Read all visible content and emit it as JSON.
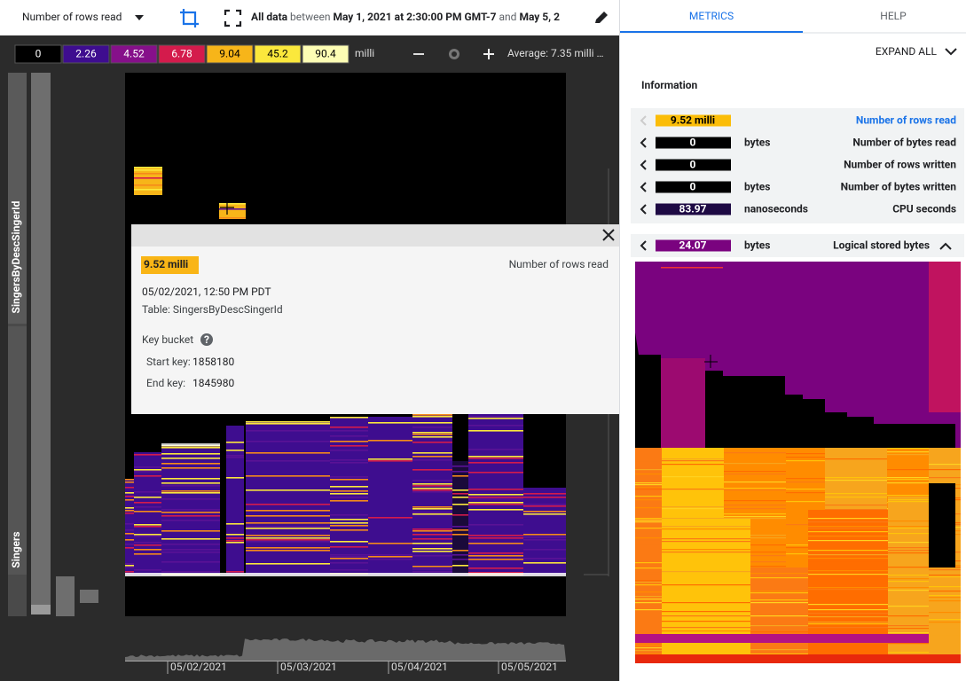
{
  "toolbar": {
    "metric": "Number of rows read",
    "scope": "All data",
    "between": "between",
    "start": "May 1, 2021 at 2:30:00 PM GMT-7",
    "and": "and",
    "end": "May 5, 2"
  },
  "legend": {
    "stops": [
      0,
      2.26,
      4.52,
      6.78,
      9.04,
      45.2,
      90.4
    ],
    "unit": "milli",
    "average": "Average: 7.35 milli …"
  },
  "heatmap": {
    "tables": [
      "SingersByDescSingerId",
      "Singers"
    ],
    "dates": [
      "05/02/2021",
      "05/03/2021",
      "05/04/2021",
      "05/05/2021"
    ]
  },
  "tooltip": {
    "value": "9.52 milli",
    "metric": "Number of rows read",
    "time": "05/02/2021, 12:50 PM PDT",
    "table": "Table: SingersByDescSingerId",
    "key_bucket": "Key bucket",
    "start_label": "Start key:",
    "start_key": 1858180,
    "end_label": "End key:",
    "end_key": 1845980
  },
  "panel": {
    "tabs": [
      "METRICS",
      "HELP"
    ],
    "expand": "EXPAND ALL",
    "section": "Information",
    "metrics": [
      {
        "value": "9.52 milli",
        "name": "Number of rows read"
      },
      {
        "value": 0,
        "unit": "bytes",
        "name": "Number of bytes read"
      },
      {
        "value": 0,
        "name": "Number of rows written"
      },
      {
        "value": 0,
        "unit": "bytes",
        "name": "Number of bytes written"
      },
      {
        "value": 83.97,
        "unit": "nanoseconds",
        "name": "CPU seconds"
      },
      {
        "value": 24.07,
        "unit": "bytes",
        "name": "Logical stored bytes"
      }
    ]
  }
}
